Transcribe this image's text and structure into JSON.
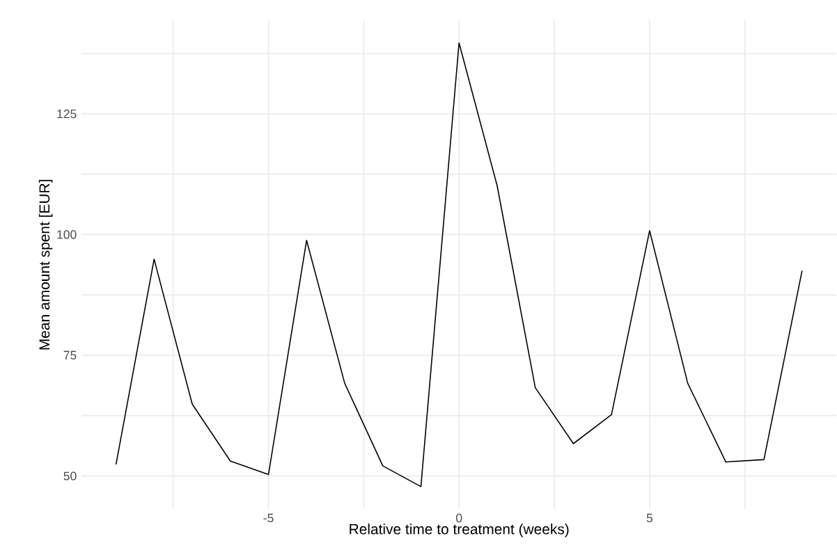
{
  "chart_data": {
    "type": "line",
    "xlabel": "Relative time to treatment (weeks)",
    "ylabel": "Mean amount spent [EUR]",
    "x": [
      -9,
      -8,
      -7,
      -6,
      -5,
      -4,
      -3,
      -2,
      -1,
      0,
      1,
      2,
      3,
      4,
      5,
      6,
      7,
      8,
      9
    ],
    "series": [
      {
        "color": "#000000",
        "values": [
          52.4,
          94.9,
          64.9,
          53.1,
          50.3,
          98.8,
          69.2,
          52.1,
          47.8,
          139.7,
          110.1,
          68.3,
          56.7,
          62.7,
          100.8,
          69.2,
          52.9,
          53.4,
          92.5
        ]
      }
    ],
    "xlim": [
      -9.9,
      9.9
    ],
    "ylim": [
      43.2,
      144.3
    ],
    "xticks": [
      {
        "value": -7.5,
        "label": null
      },
      -5,
      {
        "value": -2.5,
        "label": null
      },
      0,
      {
        "value": 2.5,
        "label": null
      },
      5,
      {
        "value": 7.5,
        "label": null
      }
    ],
    "yticks": [
      50,
      {
        "value": 62.5,
        "label": null
      },
      75,
      {
        "value": 87.5,
        "label": null
      },
      100,
      {
        "value": 112.5,
        "label": null
      },
      125,
      {
        "value": 137.5,
        "label": null
      }
    ],
    "grid": true,
    "marker": "none",
    "line_style": "solid"
  }
}
